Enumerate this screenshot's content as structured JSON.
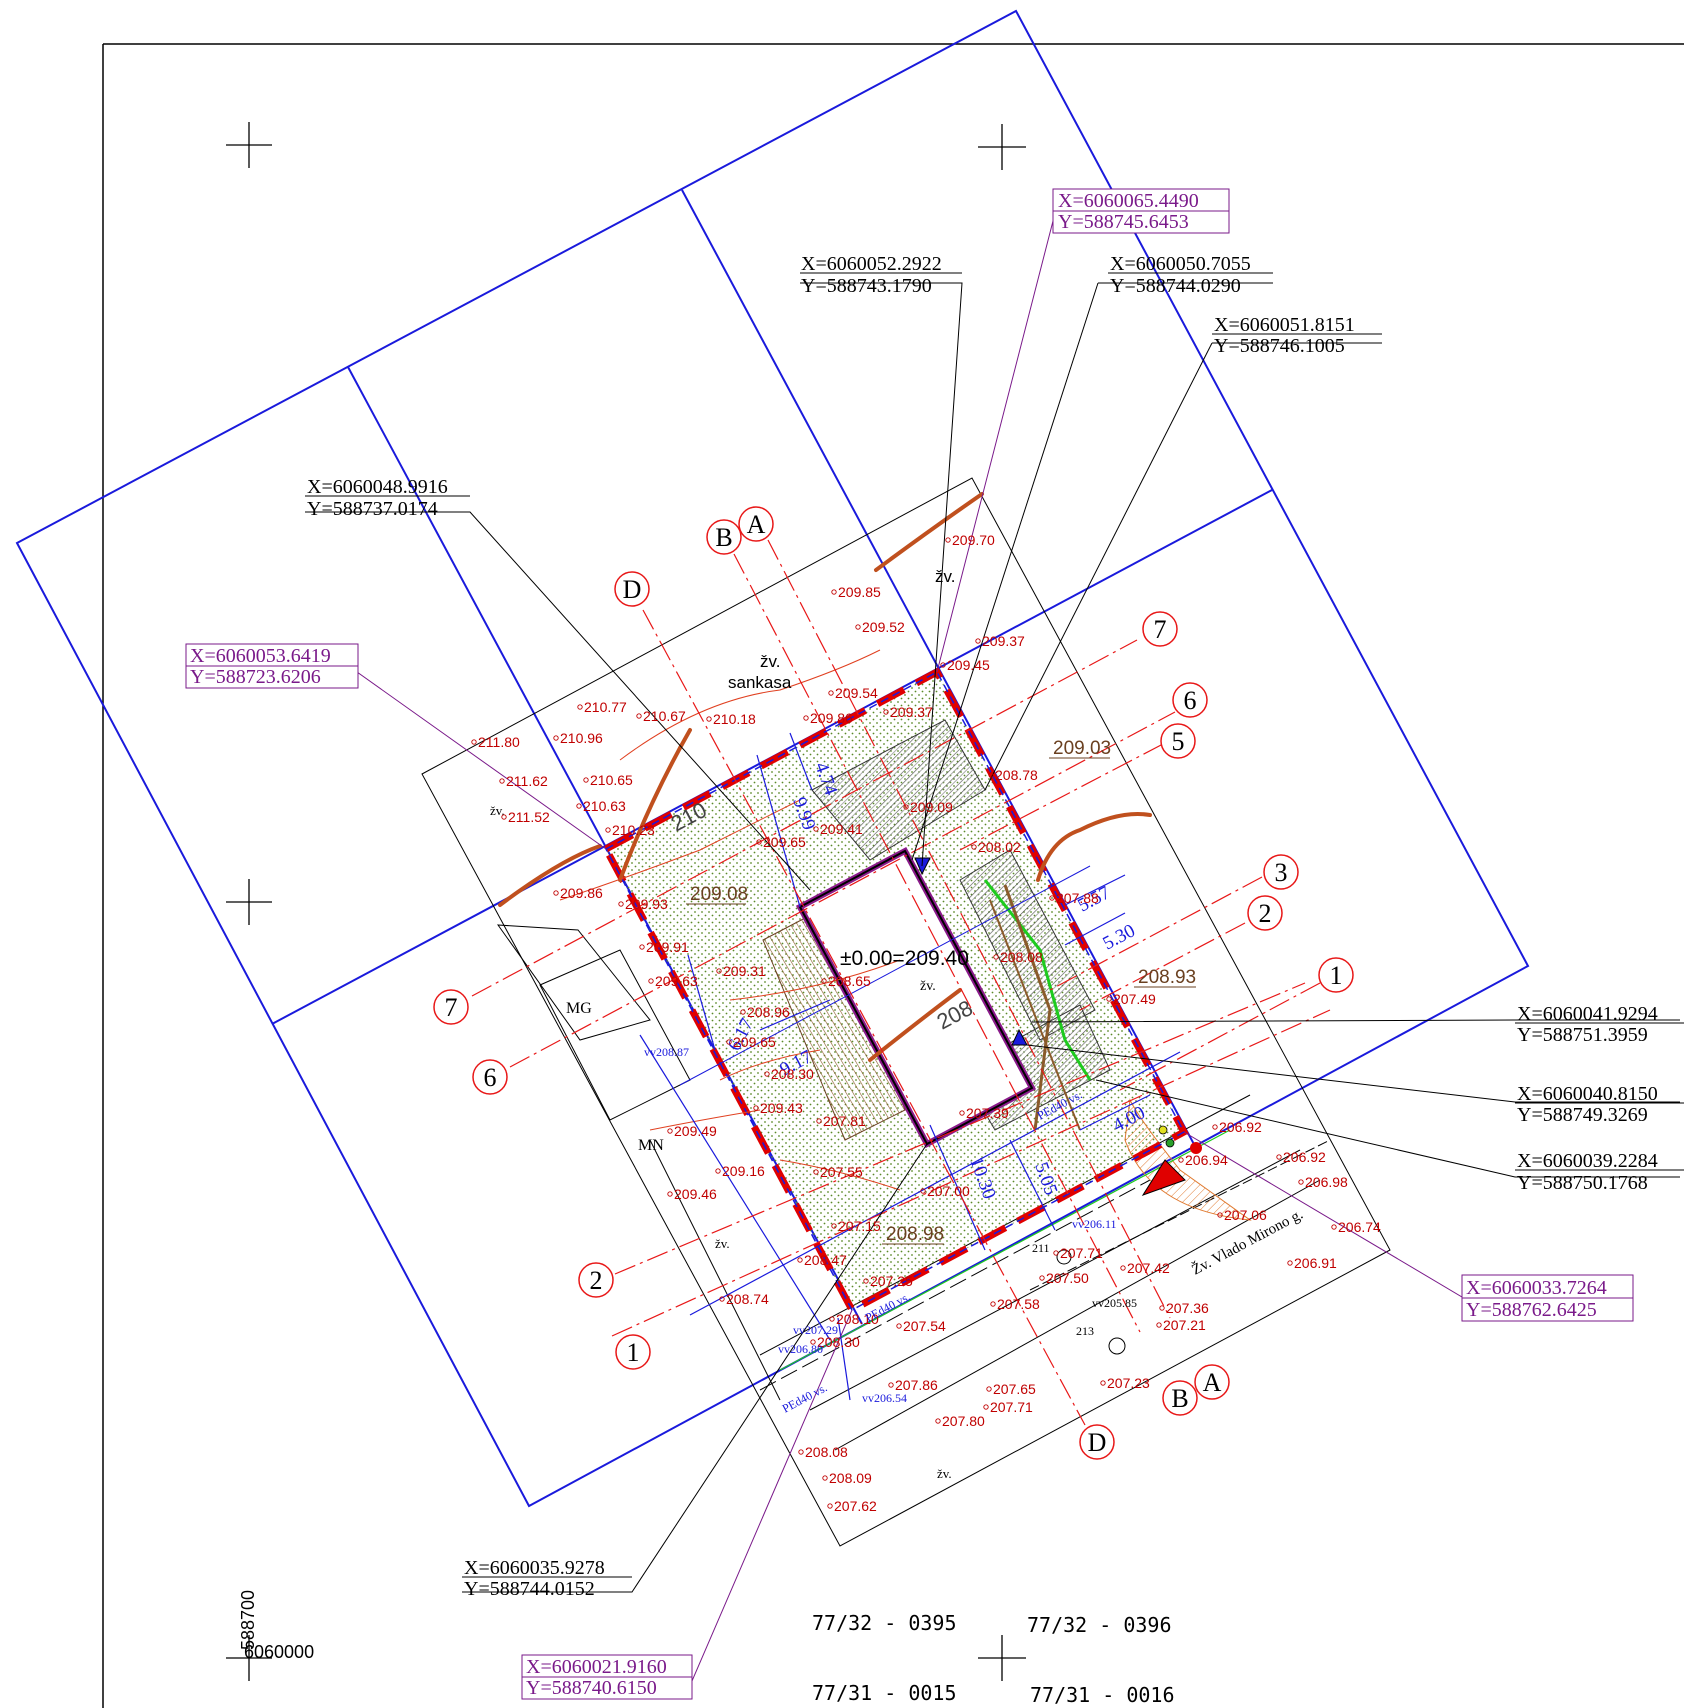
{
  "coord_labels": [
    {
      "id": "c1",
      "x": "X=6060065.4490",
      "y": "Y=588745.6453",
      "boxed": true
    },
    {
      "id": "c2",
      "x": "X=6060052.2922",
      "y": "Y=588743.1790",
      "boxed": false
    },
    {
      "id": "c3",
      "x": "X=6060050.7055",
      "y": "Y=588744.0290",
      "boxed": false
    },
    {
      "id": "c4",
      "x": "X=6060051.8151",
      "y": "Y=588746.1005",
      "boxed": false
    },
    {
      "id": "c5",
      "x": "X=6060048.9916",
      "y": "Y=588737.0174",
      "boxed": false
    },
    {
      "id": "c6",
      "x": "X=6060053.6419",
      "y": "Y=588723.6206",
      "boxed": true
    },
    {
      "id": "c7",
      "x": "X=6060041.9294",
      "y": "Y=588751.3959",
      "boxed": false
    },
    {
      "id": "c8",
      "x": "X=6060040.8150",
      "y": "Y=588749.3269",
      "boxed": false
    },
    {
      "id": "c9",
      "x": "X=6060039.2284",
      "y": "Y=588750.1768",
      "boxed": false
    },
    {
      "id": "c10",
      "x": "X=6060033.7264",
      "y": "Y=588762.6425",
      "boxed": true
    },
    {
      "id": "c11",
      "x": "X=6060035.9278",
      "y": "Y=588744.0152",
      "boxed": false
    },
    {
      "id": "c12",
      "x": "X=6060021.9160",
      "y": "Y=588740.6150",
      "boxed": true
    }
  ],
  "axis_labels": [
    "A",
    "B",
    "D",
    "1",
    "2",
    "3",
    "5",
    "6",
    "7"
  ],
  "map_sheets": [
    "77/32 - 0395",
    "77/32 - 0396",
    "77/31 - 0015",
    "77/31 - 0016"
  ],
  "grid_coords": {
    "easting": "588700",
    "northing": "6060000"
  },
  "building": {
    "level": "±0.00=209.40",
    "code": "žv."
  },
  "terrain_labels": {
    "sankasa_1": "žv.",
    "sankasa_2": "sankasa",
    "zv": "žv.",
    "street": "Žv. Vlado Mirono g.",
    "mg": "MG",
    "mn": "MN",
    "contour_210": "210",
    "contour_208": "208"
  },
  "underlined_levels": [
    "209.08",
    "209.03",
    "208.93",
    "208.98"
  ],
  "dimensions": [
    "4.74",
    "9.99",
    "6.17",
    "9.17",
    "10.30",
    "5.57",
    "5.30",
    "4.00",
    "5.05"
  ],
  "spot_levels": [
    "209.70",
    "209.85",
    "209.52",
    "209.37",
    "209.45",
    "209.54",
    "209.37",
    "210.77",
    "210.67",
    "210.18",
    "209.86",
    "211.80",
    "210.96",
    "210.65",
    "211.62",
    "210.63",
    "210.23",
    "211.52",
    "209.86",
    "209.93",
    "209.09",
    "208.78",
    "208.02",
    "207.88",
    "209.41",
    "209.65",
    "209.91",
    "209.63",
    "209.31",
    "208.65",
    "208.96",
    "209.65",
    "208.30",
    "209.43",
    "207.81",
    "209.49",
    "209.16",
    "207.55",
    "209.46",
    "207.00",
    "207.15",
    "208.47",
    "207.25",
    "208.74",
    "208.10",
    "207.54",
    "207.58",
    "208.30",
    "207.86",
    "207.65",
    "207.71",
    "207.80",
    "208.08",
    "208.09",
    "207.62",
    "207.49",
    "206.92",
    "206.92",
    "206.98",
    "206.94",
    "207.06",
    "206.74",
    "206.91",
    "207.42",
    "207.50",
    "207.71",
    "207.36",
    "207.21",
    "207.23",
    "207.39",
    "208.08"
  ],
  "utility_labels": [
    "vv208.87",
    "vv207.29",
    "vv206.80",
    "vv206.54",
    "vv206.11",
    "vv205.85",
    "PEd40 vs.",
    "PEd40 vs.",
    "PEd40 vs.",
    "211",
    "213"
  ],
  "colors": {
    "plot_blue": "#1a1adc",
    "parcel_red": "#e00000",
    "terrain_red": "#c00000",
    "purple": "#7a1a8a",
    "contour_brown": "#c0501e",
    "axis_red": "#e81818",
    "grass_green": "#2aa02a"
  }
}
